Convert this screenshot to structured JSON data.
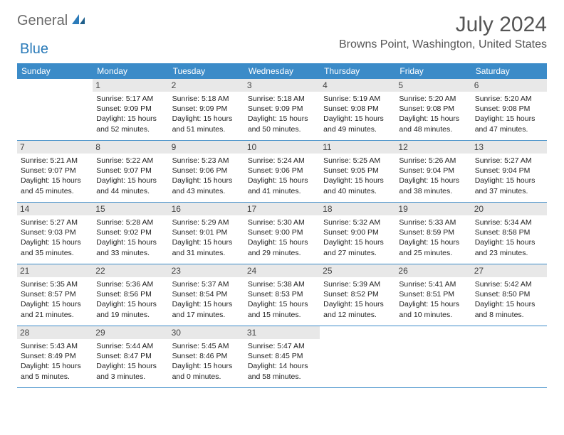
{
  "logo": {
    "part1": "General",
    "part2": "Blue"
  },
  "header": {
    "title": "July 2024",
    "location": "Browns Point, Washington, United States"
  },
  "colors": {
    "header_bg": "#3b8bc8",
    "header_fg": "#ffffff",
    "daynum_bg": "#e8e8e8",
    "border": "#3b8bc8",
    "logo_gray": "#6b6b6b",
    "logo_blue": "#2b7bb9"
  },
  "dayNames": [
    "Sunday",
    "Monday",
    "Tuesday",
    "Wednesday",
    "Thursday",
    "Friday",
    "Saturday"
  ],
  "weeks": [
    [
      null,
      {
        "n": "1",
        "sr": "5:17 AM",
        "ss": "9:09 PM",
        "dl": "15 hours and 52 minutes."
      },
      {
        "n": "2",
        "sr": "5:18 AM",
        "ss": "9:09 PM",
        "dl": "15 hours and 51 minutes."
      },
      {
        "n": "3",
        "sr": "5:18 AM",
        "ss": "9:09 PM",
        "dl": "15 hours and 50 minutes."
      },
      {
        "n": "4",
        "sr": "5:19 AM",
        "ss": "9:08 PM",
        "dl": "15 hours and 49 minutes."
      },
      {
        "n": "5",
        "sr": "5:20 AM",
        "ss": "9:08 PM",
        "dl": "15 hours and 48 minutes."
      },
      {
        "n": "6",
        "sr": "5:20 AM",
        "ss": "9:08 PM",
        "dl": "15 hours and 47 minutes."
      }
    ],
    [
      {
        "n": "7",
        "sr": "5:21 AM",
        "ss": "9:07 PM",
        "dl": "15 hours and 45 minutes."
      },
      {
        "n": "8",
        "sr": "5:22 AM",
        "ss": "9:07 PM",
        "dl": "15 hours and 44 minutes."
      },
      {
        "n": "9",
        "sr": "5:23 AM",
        "ss": "9:06 PM",
        "dl": "15 hours and 43 minutes."
      },
      {
        "n": "10",
        "sr": "5:24 AM",
        "ss": "9:06 PM",
        "dl": "15 hours and 41 minutes."
      },
      {
        "n": "11",
        "sr": "5:25 AM",
        "ss": "9:05 PM",
        "dl": "15 hours and 40 minutes."
      },
      {
        "n": "12",
        "sr": "5:26 AM",
        "ss": "9:04 PM",
        "dl": "15 hours and 38 minutes."
      },
      {
        "n": "13",
        "sr": "5:27 AM",
        "ss": "9:04 PM",
        "dl": "15 hours and 37 minutes."
      }
    ],
    [
      {
        "n": "14",
        "sr": "5:27 AM",
        "ss": "9:03 PM",
        "dl": "15 hours and 35 minutes."
      },
      {
        "n": "15",
        "sr": "5:28 AM",
        "ss": "9:02 PM",
        "dl": "15 hours and 33 minutes."
      },
      {
        "n": "16",
        "sr": "5:29 AM",
        "ss": "9:01 PM",
        "dl": "15 hours and 31 minutes."
      },
      {
        "n": "17",
        "sr": "5:30 AM",
        "ss": "9:00 PM",
        "dl": "15 hours and 29 minutes."
      },
      {
        "n": "18",
        "sr": "5:32 AM",
        "ss": "9:00 PM",
        "dl": "15 hours and 27 minutes."
      },
      {
        "n": "19",
        "sr": "5:33 AM",
        "ss": "8:59 PM",
        "dl": "15 hours and 25 minutes."
      },
      {
        "n": "20",
        "sr": "5:34 AM",
        "ss": "8:58 PM",
        "dl": "15 hours and 23 minutes."
      }
    ],
    [
      {
        "n": "21",
        "sr": "5:35 AM",
        "ss": "8:57 PM",
        "dl": "15 hours and 21 minutes."
      },
      {
        "n": "22",
        "sr": "5:36 AM",
        "ss": "8:56 PM",
        "dl": "15 hours and 19 minutes."
      },
      {
        "n": "23",
        "sr": "5:37 AM",
        "ss": "8:54 PM",
        "dl": "15 hours and 17 minutes."
      },
      {
        "n": "24",
        "sr": "5:38 AM",
        "ss": "8:53 PM",
        "dl": "15 hours and 15 minutes."
      },
      {
        "n": "25",
        "sr": "5:39 AM",
        "ss": "8:52 PM",
        "dl": "15 hours and 12 minutes."
      },
      {
        "n": "26",
        "sr": "5:41 AM",
        "ss": "8:51 PM",
        "dl": "15 hours and 10 minutes."
      },
      {
        "n": "27",
        "sr": "5:42 AM",
        "ss": "8:50 PM",
        "dl": "15 hours and 8 minutes."
      }
    ],
    [
      {
        "n": "28",
        "sr": "5:43 AM",
        "ss": "8:49 PM",
        "dl": "15 hours and 5 minutes."
      },
      {
        "n": "29",
        "sr": "5:44 AM",
        "ss": "8:47 PM",
        "dl": "15 hours and 3 minutes."
      },
      {
        "n": "30",
        "sr": "5:45 AM",
        "ss": "8:46 PM",
        "dl": "15 hours and 0 minutes."
      },
      {
        "n": "31",
        "sr": "5:47 AM",
        "ss": "8:45 PM",
        "dl": "14 hours and 58 minutes."
      },
      null,
      null,
      null
    ]
  ],
  "labels": {
    "sunrise": "Sunrise:",
    "sunset": "Sunset:",
    "daylight": "Daylight:"
  }
}
